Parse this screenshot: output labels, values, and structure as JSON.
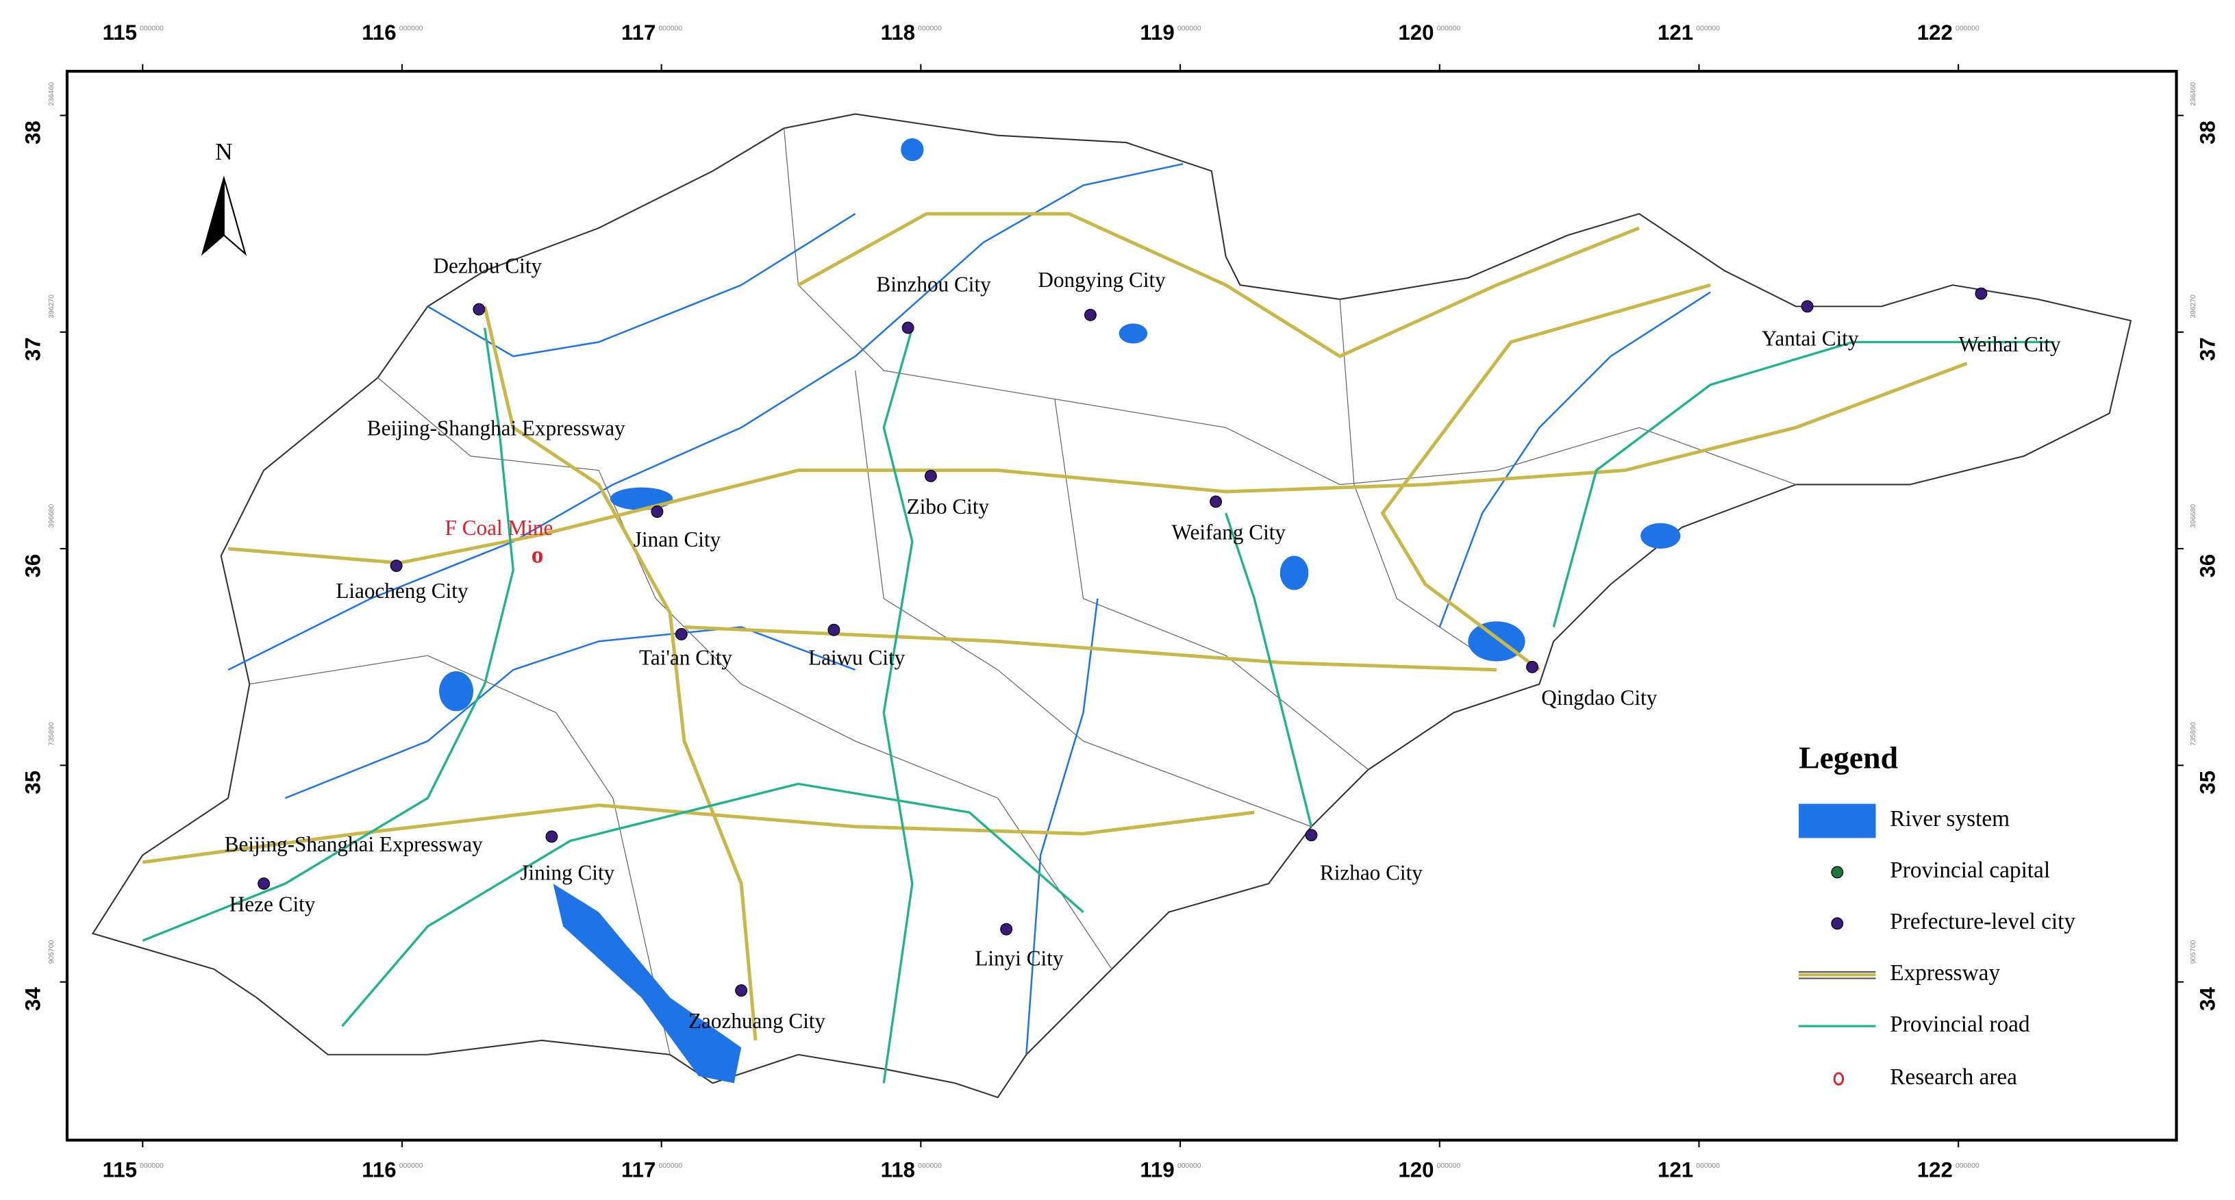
{
  "map": {
    "lon_ticks": [
      "115",
      "116",
      "117",
      "118",
      "119",
      "120",
      "121",
      "122"
    ],
    "lat_ticks": [
      "38",
      "37",
      "36",
      "35",
      "34"
    ],
    "tick_suffix": "000000",
    "side_labels": [
      "236460",
      "396270",
      "396680",
      "735890",
      "905700"
    ],
    "north": "N",
    "cities": [
      {
        "label": "Dezhou City"
      },
      {
        "label": "Binzhou City"
      },
      {
        "label": "Dongying City"
      },
      {
        "label": "Yantai City"
      },
      {
        "label": "Weihai City"
      },
      {
        "label": "Jinan City"
      },
      {
        "label": "Zibo City"
      },
      {
        "label": "Weifang City"
      },
      {
        "label": "Liaocheng City"
      },
      {
        "label": "Tai'an City"
      },
      {
        "label": "Laiwu City"
      },
      {
        "label": "Qingdao City"
      },
      {
        "label": "Rizhao City"
      },
      {
        "label": "Jining City"
      },
      {
        "label": "Heze City"
      },
      {
        "label": "Linyi City"
      },
      {
        "label": "Zaozhuang City"
      }
    ],
    "road_labels": [
      "Beijing-Shanghai Expressway",
      "Beijing-Shanghai Expressway"
    ],
    "research_label": "F Coal Mine",
    "research_marker": "o",
    "legend": {
      "title": "Legend",
      "items": [
        "River system",
        "Provincial capital",
        "Prefecture-level city",
        "Expressway",
        "Provincial road",
        "Research area"
      ]
    }
  }
}
